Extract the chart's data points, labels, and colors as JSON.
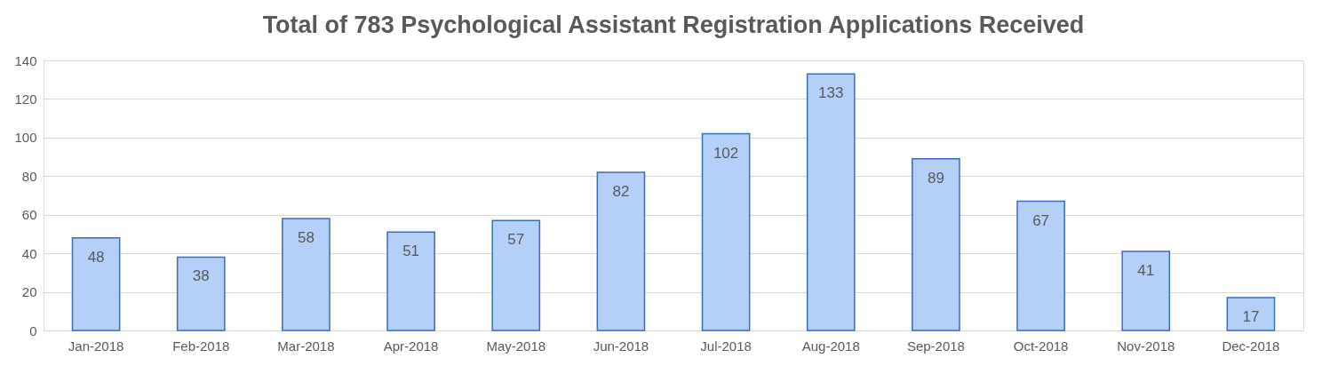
{
  "chart_data": {
    "type": "bar",
    "title": "Total of 783 Psychological Assistant Registration Applications Received",
    "categories": [
      "Jan-2018",
      "Feb-2018",
      "Mar-2018",
      "Apr-2018",
      "May-2018",
      "Jun-2018",
      "Jul-2018",
      "Aug-2018",
      "Sep-2018",
      "Oct-2018",
      "Nov-2018",
      "Dec-2018"
    ],
    "values": [
      48,
      38,
      58,
      51,
      57,
      82,
      102,
      133,
      89,
      67,
      41,
      17
    ],
    "color": "#b4d0f8",
    "ylim": [
      0,
      140
    ],
    "yticks": [
      0,
      20,
      40,
      60,
      80,
      100,
      120,
      140
    ],
    "grid": "y",
    "data_labels": true
  }
}
